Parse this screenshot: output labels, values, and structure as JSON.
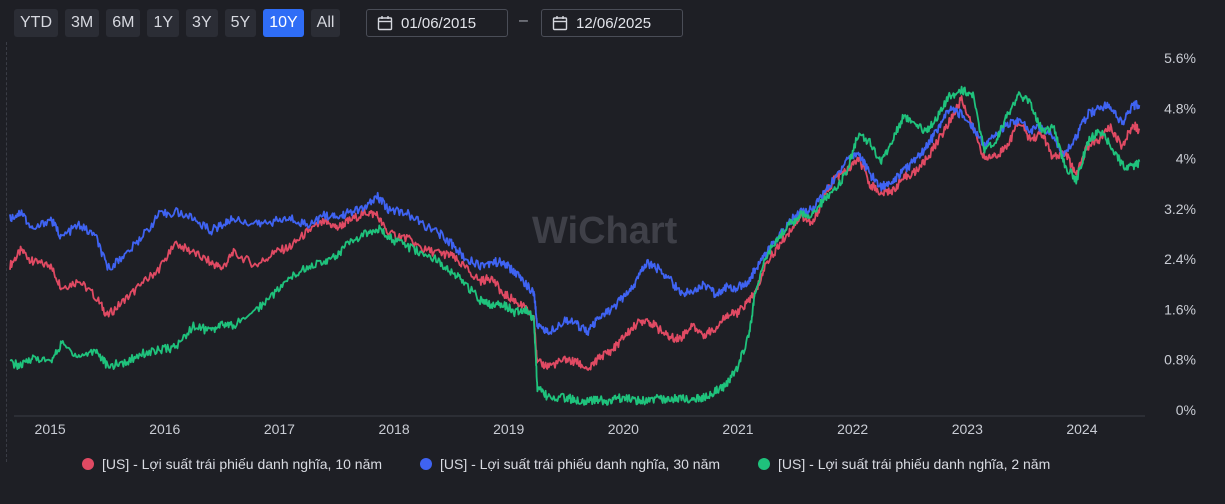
{
  "toolbar": {
    "ranges": [
      "YTD",
      "3M",
      "6M",
      "1Y",
      "3Y",
      "5Y",
      "10Y",
      "All"
    ],
    "active_range": "10Y",
    "start_date": "01/06/2015",
    "end_date": "12/06/2025",
    "separator": "–"
  },
  "watermark": "WiChart",
  "colors": {
    "ten_year": "#e04a63",
    "thirty_year": "#3f63f2",
    "two_year": "#1fc27c",
    "background": "#1e1f25"
  },
  "chart_data": {
    "type": "line",
    "ylim": [
      0,
      5.6
    ],
    "xlim": [
      2014.65,
      2024.55
    ],
    "y_ticks": [
      "5.6%",
      "4.8%",
      "4%",
      "3.2%",
      "2.4%",
      "1.6%",
      "0.8%",
      "0%"
    ],
    "x_ticks": [
      "2015",
      "2016",
      "2017",
      "2018",
      "2019",
      "2020",
      "2021",
      "2022",
      "2023",
      "2024"
    ],
    "series": [
      {
        "name": "[US] - Lợi suất trái phiếu danh nghĩa, 10 năm",
        "color": "#e04a63",
        "x": [
          2014.65,
          2014.75,
          2014.85,
          2015.0,
          2015.1,
          2015.25,
          2015.4,
          2015.5,
          2015.65,
          2015.8,
          2015.95,
          2016.1,
          2016.25,
          2016.4,
          2016.5,
          2016.6,
          2016.8,
          2016.95,
          2017.1,
          2017.25,
          2017.4,
          2017.5,
          2017.6,
          2017.75,
          2017.85,
          2017.95,
          2018.1,
          2018.25,
          2018.4,
          2018.5,
          2018.6,
          2018.75,
          2018.85,
          2018.95,
          2019.05,
          2019.15,
          2019.22,
          2019.25,
          2019.35,
          2019.5,
          2019.6,
          2019.7,
          2019.8,
          2019.9,
          2020.0,
          2020.1,
          2020.2,
          2020.3,
          2020.4,
          2020.5,
          2020.6,
          2020.7,
          2020.8,
          2020.9,
          2021.0,
          2021.1,
          2021.15,
          2021.25,
          2021.35,
          2021.45,
          2021.55,
          2021.65,
          2021.75,
          2021.85,
          2021.95,
          2022.05,
          2022.15,
          2022.25,
          2022.35,
          2022.45,
          2022.55,
          2022.65,
          2022.75,
          2022.85,
          2022.95,
          2023.05,
          2023.15,
          2023.25,
          2023.35,
          2023.45,
          2023.55,
          2023.65,
          2023.75,
          2023.85,
          2023.95,
          2024.05,
          2024.15,
          2024.25,
          2024.35,
          2024.45,
          2024.5
        ],
        "values": [
          2.3,
          2.55,
          2.35,
          2.3,
          1.95,
          2.05,
          1.8,
          1.5,
          1.75,
          2.0,
          2.25,
          2.65,
          2.5,
          2.35,
          2.25,
          2.5,
          2.3,
          2.5,
          2.6,
          2.85,
          3.0,
          2.9,
          3.0,
          3.15,
          3.1,
          2.8,
          2.75,
          2.55,
          2.5,
          2.45,
          2.3,
          2.05,
          2.1,
          1.85,
          1.75,
          1.6,
          1.45,
          0.75,
          0.7,
          0.8,
          0.75,
          0.65,
          0.85,
          0.95,
          1.15,
          1.35,
          1.45,
          1.3,
          1.15,
          1.15,
          1.35,
          1.2,
          1.3,
          1.5,
          1.55,
          1.75,
          1.85,
          2.35,
          2.6,
          2.85,
          3.1,
          2.95,
          3.4,
          3.7,
          3.8,
          4.0,
          3.6,
          3.45,
          3.5,
          3.7,
          3.8,
          4.0,
          4.3,
          4.6,
          4.95,
          4.5,
          4.0,
          4.05,
          4.2,
          4.6,
          4.3,
          4.4,
          4.0,
          4.1,
          3.75,
          4.2,
          4.3,
          4.5,
          4.2,
          4.55,
          4.45
        ]
      },
      {
        "name": "[US] - Lợi suất trái phiếu danh nghĩa, 30 năm",
        "color": "#3f63f2",
        "x": [
          2014.65,
          2014.75,
          2014.85,
          2015.0,
          2015.1,
          2015.25,
          2015.4,
          2015.5,
          2015.65,
          2015.8,
          2015.95,
          2016.1,
          2016.25,
          2016.4,
          2016.5,
          2016.6,
          2016.8,
          2016.95,
          2017.1,
          2017.25,
          2017.4,
          2017.5,
          2017.6,
          2017.75,
          2017.85,
          2017.95,
          2018.1,
          2018.25,
          2018.4,
          2018.5,
          2018.6,
          2018.75,
          2018.85,
          2018.95,
          2019.05,
          2019.15,
          2019.22,
          2019.25,
          2019.35,
          2019.5,
          2019.6,
          2019.7,
          2019.8,
          2019.9,
          2020.0,
          2020.1,
          2020.2,
          2020.3,
          2020.4,
          2020.5,
          2020.6,
          2020.7,
          2020.8,
          2020.9,
          2021.0,
          2021.1,
          2021.15,
          2021.25,
          2021.35,
          2021.45,
          2021.55,
          2021.65,
          2021.75,
          2021.85,
          2021.95,
          2022.05,
          2022.15,
          2022.25,
          2022.35,
          2022.45,
          2022.55,
          2022.65,
          2022.75,
          2022.85,
          2022.95,
          2023.05,
          2023.15,
          2023.25,
          2023.35,
          2023.45,
          2023.55,
          2023.65,
          2023.75,
          2023.85,
          2023.95,
          2024.05,
          2024.15,
          2024.25,
          2024.35,
          2024.45,
          2024.5
        ],
        "values": [
          3.05,
          3.15,
          2.85,
          3.05,
          2.75,
          2.95,
          2.75,
          2.25,
          2.45,
          2.75,
          3.1,
          3.15,
          3.05,
          2.85,
          2.95,
          3.05,
          2.95,
          3.0,
          3.05,
          2.95,
          3.1,
          3.05,
          3.15,
          3.2,
          3.4,
          3.2,
          3.15,
          2.95,
          2.8,
          2.65,
          2.45,
          2.3,
          2.35,
          2.35,
          2.2,
          2.0,
          1.85,
          1.35,
          1.25,
          1.45,
          1.35,
          1.25,
          1.5,
          1.6,
          1.8,
          2.0,
          2.35,
          2.25,
          2.1,
          1.85,
          1.9,
          2.0,
          1.85,
          1.95,
          1.95,
          2.05,
          2.25,
          2.5,
          2.75,
          3.0,
          3.15,
          3.2,
          3.45,
          3.7,
          4.0,
          4.1,
          3.75,
          3.55,
          3.65,
          3.8,
          4.0,
          4.2,
          4.5,
          4.8,
          4.7,
          4.5,
          4.2,
          4.4,
          4.55,
          4.6,
          4.45,
          4.5,
          4.35,
          4.05,
          4.35,
          4.7,
          4.8,
          4.85,
          4.55,
          4.85,
          4.85
        ]
      },
      {
        "name": "[US] - Lợi suất trái phiếu danh nghĩa, 2 năm",
        "color": "#1fc27c",
        "x": [
          2014.65,
          2014.75,
          2014.85,
          2015.0,
          2015.1,
          2015.25,
          2015.4,
          2015.5,
          2015.65,
          2015.8,
          2015.95,
          2016.1,
          2016.25,
          2016.4,
          2016.5,
          2016.6,
          2016.8,
          2016.95,
          2017.1,
          2017.25,
          2017.4,
          2017.5,
          2017.6,
          2017.75,
          2017.85,
          2017.95,
          2018.1,
          2018.25,
          2018.4,
          2018.5,
          2018.6,
          2018.75,
          2018.85,
          2018.95,
          2019.05,
          2019.15,
          2019.22,
          2019.25,
          2019.35,
          2019.5,
          2019.6,
          2019.7,
          2019.8,
          2019.9,
          2020.0,
          2020.1,
          2020.2,
          2020.3,
          2020.4,
          2020.5,
          2020.6,
          2020.7,
          2020.8,
          2020.9,
          2021.0,
          2021.1,
          2021.15,
          2021.25,
          2021.35,
          2021.45,
          2021.55,
          2021.65,
          2021.75,
          2021.85,
          2021.95,
          2022.05,
          2022.15,
          2022.25,
          2022.35,
          2022.45,
          2022.55,
          2022.65,
          2022.75,
          2022.85,
          2022.95,
          2023.05,
          2023.15,
          2023.25,
          2023.35,
          2023.45,
          2023.55,
          2023.65,
          2023.75,
          2023.85,
          2023.95,
          2024.05,
          2024.15,
          2024.25,
          2024.35,
          2024.45,
          2024.5
        ],
        "values": [
          0.75,
          0.7,
          0.85,
          0.75,
          1.05,
          0.85,
          0.95,
          0.7,
          0.75,
          0.9,
          0.95,
          1.0,
          1.35,
          1.25,
          1.35,
          1.35,
          1.6,
          1.85,
          2.1,
          2.3,
          2.35,
          2.45,
          2.65,
          2.8,
          2.9,
          2.75,
          2.6,
          2.5,
          2.35,
          2.2,
          2.05,
          1.75,
          1.65,
          1.7,
          1.55,
          1.6,
          1.45,
          0.35,
          0.2,
          0.2,
          0.15,
          0.15,
          0.15,
          0.15,
          0.2,
          0.15,
          0.15,
          0.18,
          0.15,
          0.2,
          0.15,
          0.2,
          0.3,
          0.4,
          0.7,
          1.2,
          1.9,
          2.45,
          2.75,
          2.95,
          3.1,
          3.1,
          3.35,
          3.5,
          3.8,
          4.4,
          4.25,
          3.95,
          4.3,
          4.7,
          4.5,
          4.45,
          4.7,
          5.0,
          5.1,
          5.0,
          4.1,
          4.3,
          4.7,
          5.0,
          4.9,
          4.45,
          4.5,
          3.9,
          3.65,
          4.25,
          4.45,
          4.2,
          3.9,
          3.85,
          3.95
        ]
      }
    ]
  }
}
